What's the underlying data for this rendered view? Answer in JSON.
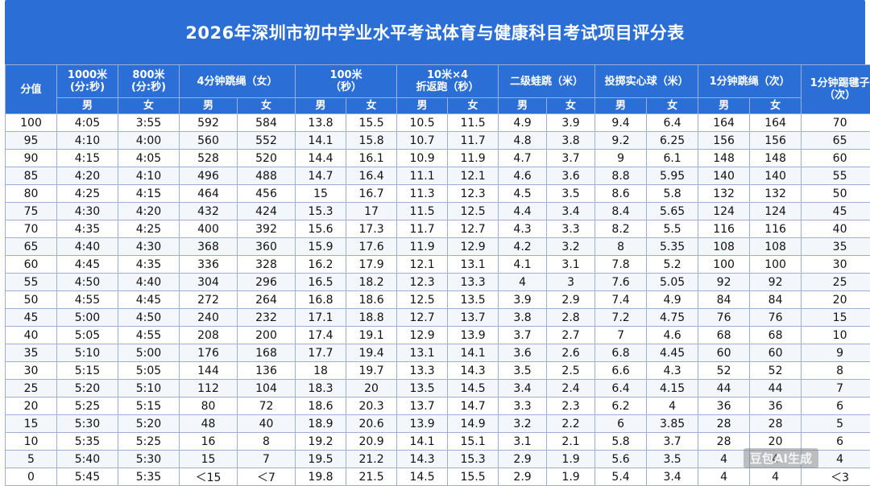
{
  "title": "2026年深圳市初中学业水平考试体育与健康科目考试项目评分表",
  "headers": {
    "score": "分值",
    "run1000": "1000米\n(分:秒)",
    "run800": "800米\n(分:秒)",
    "rope4": "4分钟跳绳（女）",
    "m100": "100米\n（秒）",
    "shuttle": "10米×4\n折返跑（秒）",
    "jump": "二级蛙跳（米）",
    "ball": "投掷实心球（米）",
    "rope1": "1分钟跳绳（次）",
    "kick": "1分钟踢毽子\n（次）"
  },
  "gender": {
    "male": "男",
    "female": "女"
  },
  "rows": [
    [
      "100",
      "4:05",
      "3:55",
      "592",
      "584",
      "13.8",
      "15.5",
      "10.5",
      "11.5",
      "4.9",
      "3.9",
      "9.4",
      "6.4",
      "164",
      "164",
      "70"
    ],
    [
      "95",
      "4:10",
      "4:00",
      "560",
      "552",
      "14.1",
      "15.8",
      "10.7",
      "11.7",
      "4.8",
      "3.8",
      "9.2",
      "6.25",
      "156",
      "156",
      "65"
    ],
    [
      "90",
      "4:15",
      "4:05",
      "528",
      "520",
      "14.4",
      "16.1",
      "10.9",
      "11.9",
      "4.7",
      "3.7",
      "9",
      "6.1",
      "148",
      "148",
      "60"
    ],
    [
      "85",
      "4:20",
      "4:10",
      "496",
      "488",
      "14.7",
      "16.4",
      "11.1",
      "12.1",
      "4.6",
      "3.6",
      "8.8",
      "5.95",
      "140",
      "140",
      "55"
    ],
    [
      "80",
      "4:25",
      "4:15",
      "464",
      "456",
      "15",
      "16.7",
      "11.3",
      "12.3",
      "4.5",
      "3.5",
      "8.6",
      "5.8",
      "132",
      "132",
      "50"
    ],
    [
      "75",
      "4:30",
      "4:20",
      "432",
      "424",
      "15.3",
      "17",
      "11.5",
      "12.5",
      "4.4",
      "3.4",
      "8.4",
      "5.65",
      "124",
      "124",
      "45"
    ],
    [
      "70",
      "4:35",
      "4:25",
      "400",
      "392",
      "15.6",
      "17.3",
      "11.7",
      "12.7",
      "4.3",
      "3.3",
      "8.2",
      "5.5",
      "116",
      "116",
      "40"
    ],
    [
      "65",
      "4:40",
      "4:30",
      "368",
      "360",
      "15.9",
      "17.6",
      "11.9",
      "12.9",
      "4.2",
      "3.2",
      "8",
      "5.35",
      "108",
      "108",
      "35"
    ],
    [
      "60",
      "4:45",
      "4:35",
      "336",
      "328",
      "16.2",
      "17.9",
      "12.1",
      "13.1",
      "4.1",
      "3.1",
      "7.8",
      "5.2",
      "100",
      "100",
      "30"
    ],
    [
      "55",
      "4:50",
      "4:40",
      "304",
      "296",
      "16.5",
      "18.2",
      "12.3",
      "13.3",
      "4",
      "3",
      "7.6",
      "5.05",
      "92",
      "92",
      "25"
    ],
    [
      "50",
      "4:55",
      "4:45",
      "272",
      "264",
      "16.8",
      "18.6",
      "12.5",
      "13.5",
      "3.9",
      "2.9",
      "7.4",
      "4.9",
      "84",
      "84",
      "20"
    ],
    [
      "45",
      "5:00",
      "4:50",
      "240",
      "232",
      "17.1",
      "18.8",
      "12.7",
      "13.7",
      "3.8",
      "2.8",
      "7.2",
      "4.75",
      "76",
      "76",
      "15"
    ],
    [
      "40",
      "5:05",
      "4:55",
      "208",
      "200",
      "17.4",
      "19.1",
      "12.9",
      "13.9",
      "3.7",
      "2.7",
      "7",
      "4.6",
      "68",
      "68",
      "10"
    ],
    [
      "35",
      "5:10",
      "5:00",
      "176",
      "168",
      "17.7",
      "19.4",
      "13.1",
      "14.1",
      "3.6",
      "2.6",
      "6.8",
      "4.45",
      "60",
      "60",
      "9"
    ],
    [
      "30",
      "5:15",
      "5:05",
      "144",
      "136",
      "18",
      "19.7",
      "13.3",
      "14.3",
      "3.5",
      "2.5",
      "6.6",
      "4.3",
      "52",
      "52",
      "8"
    ],
    [
      "25",
      "5:20",
      "5:10",
      "112",
      "104",
      "18.3",
      "20",
      "13.5",
      "14.5",
      "3.4",
      "2.4",
      "6.4",
      "4.15",
      "44",
      "44",
      "7"
    ],
    [
      "20",
      "5:25",
      "5:15",
      "80",
      "72",
      "18.6",
      "20.3",
      "13.7",
      "14.7",
      "3.3",
      "2.3",
      "6.2",
      "4",
      "36",
      "36",
      "6"
    ],
    [
      "15",
      "5:30",
      "5:20",
      "48",
      "40",
      "18.9",
      "20.6",
      "13.9",
      "14.9",
      "3.2",
      "2.2",
      "6",
      "3.85",
      "28",
      "28",
      "5"
    ],
    [
      "10",
      "5:35",
      "5:25",
      "16",
      "8",
      "19.2",
      "20.9",
      "14.1",
      "15.1",
      "3.1",
      "2.1",
      "5.8",
      "3.7",
      "28",
      "20",
      "6"
    ],
    [
      "5",
      "5:40",
      "5:30",
      "15",
      "7",
      "19.5",
      "21.2",
      "14.3",
      "15.3",
      "2.9",
      "1.9",
      "5.6",
      "3.5",
      "4",
      "4",
      "4"
    ],
    [
      "0",
      "5:45",
      "5:35",
      "＜15",
      "＜7",
      "19.8",
      "21.5",
      "14.5",
      "15.5",
      "2.9",
      "1.9",
      "5.4",
      "3.4",
      "4",
      "4",
      "＜3"
    ]
  ],
  "watermark": "豆包AI生成"
}
